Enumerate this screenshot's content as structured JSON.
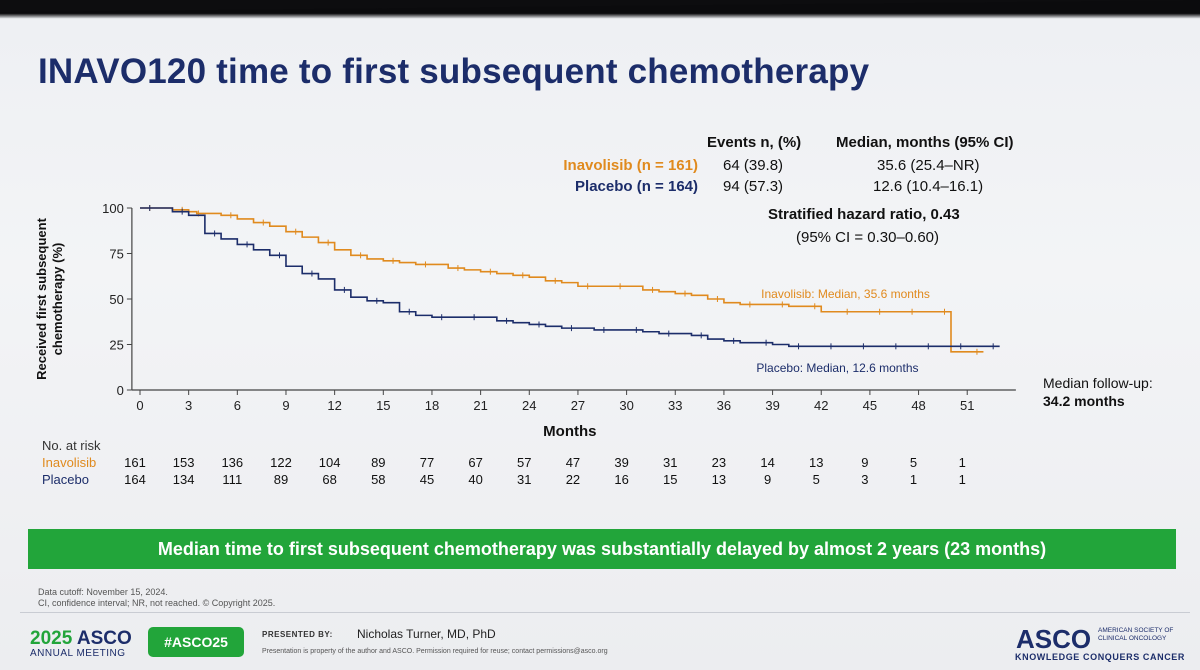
{
  "slide": {
    "title": "INAVO120 time to first subsequent chemotherapy",
    "table": {
      "col_events": "Events n, (%)",
      "col_median": "Median, months (95% CI)",
      "rows": [
        {
          "label": "Inavolisib (n = 161)",
          "events": "64 (39.8)",
          "median": "35.6 (25.4–NR)",
          "color": "#e08a1e"
        },
        {
          "label": "Placebo (n = 164)",
          "events": "94 (57.3)",
          "median": "12.6 (10.4–16.1)",
          "color": "#1c2d6a"
        }
      ]
    },
    "hazard": {
      "title": "Stratified hazard ratio, 0.43",
      "ci": "(95% CI = 0.30–0.60)"
    },
    "followup": {
      "label": "Median follow-up:",
      "value": "34.2 months"
    },
    "risk": {
      "title": "No. at risk",
      "rows": [
        {
          "name": "Inavolisib",
          "color": "#e08a1e",
          "values": [
            "161",
            "153",
            "136",
            "122",
            "104",
            "89",
            "77",
            "67",
            "57",
            "47",
            "39",
            "31",
            "23",
            "14",
            "13",
            "9",
            "5",
            "1"
          ]
        },
        {
          "name": "Placebo",
          "color": "#1c2d6a",
          "values": [
            "164",
            "134",
            "111",
            "89",
            "68",
            "58",
            "45",
            "40",
            "31",
            "22",
            "16",
            "15",
            "13",
            "9",
            "5",
            "3",
            "1",
            "1"
          ]
        }
      ]
    },
    "banner": "Median time to first subsequent chemotherapy was substantially delayed by almost 2 years (23 months)",
    "footnotes": [
      "Data cutoff: November 15, 2024.",
      "CI, confidence interval; NR, not reached. © Copyright 2025."
    ],
    "footer": {
      "asco_year": "2025",
      "asco_word": "ASCO",
      "meeting": "ANNUAL MEETING",
      "hashtag": "#ASCO25",
      "presented_by": "PRESENTED BY:",
      "presenter": "Nicholas Turner, MD, PhD",
      "property_note": "Presentation is property of the author and ASCO. Permission required for reuse; contact permissions@asco.org",
      "asco_logo": "ASCO",
      "society": "AMERICAN SOCIETY OF CLINICAL ONCOLOGY",
      "tagline": "KNOWLEDGE CONQUERS CANCER"
    }
  },
  "chart_data": {
    "type": "line",
    "step": true,
    "xlabel": "Months",
    "ylabel": "Received first subsequent chemotherapy (%)",
    "xlim": [
      0,
      54
    ],
    "ylim": [
      0,
      100
    ],
    "xticks": [
      0,
      3,
      6,
      9,
      12,
      15,
      18,
      21,
      24,
      27,
      30,
      33,
      36,
      39,
      42,
      45,
      48,
      51
    ],
    "yticks": [
      0,
      25,
      50,
      75,
      100
    ],
    "grid": false,
    "series": [
      {
        "name": "Inavolisib",
        "color": "#e08a1e",
        "annotation": "Inavolisib: Median, 35.6 months",
        "x": [
          0,
          1,
          2,
          3,
          3.5,
          4,
          5,
          6,
          7,
          8,
          9,
          10,
          11,
          12,
          13,
          14,
          15,
          16,
          17,
          18,
          19,
          20,
          21,
          22,
          23,
          24,
          25,
          26,
          27,
          28,
          29,
          30,
          31,
          32,
          33,
          34,
          35,
          36,
          37,
          38,
          39,
          40,
          41,
          42,
          43,
          44,
          45,
          46,
          47,
          48,
          49,
          50,
          51,
          52
        ],
        "y": [
          100,
          100,
          99,
          98,
          97,
          97,
          96,
          94,
          92,
          90,
          87,
          84,
          81,
          77,
          74,
          72,
          71,
          70,
          69,
          69,
          67,
          66,
          65,
          64,
          63,
          62,
          60,
          59,
          57,
          57,
          57,
          57,
          55,
          54,
          53,
          52,
          50,
          48,
          47,
          47,
          47,
          46,
          46,
          43,
          43,
          43,
          43,
          43,
          43,
          43,
          43,
          21,
          21,
          21
        ]
      },
      {
        "name": "Placebo",
        "color": "#1c2d6a",
        "annotation": "Placebo: Median, 12.6 months",
        "x": [
          0,
          1,
          2,
          3,
          4,
          5,
          6,
          7,
          8,
          9,
          10,
          11,
          12,
          13,
          14,
          15,
          16,
          17,
          18,
          19,
          20,
          21,
          22,
          23,
          24,
          25,
          26,
          27,
          28,
          29,
          30,
          31,
          32,
          33,
          34,
          35,
          36,
          37,
          38,
          39,
          40,
          41,
          42,
          43,
          44,
          45,
          46,
          47,
          48,
          49,
          50,
          51,
          52,
          53
        ],
        "y": [
          100,
          100,
          98,
          96,
          86,
          83,
          80,
          77,
          74,
          68,
          64,
          61,
          55,
          51,
          49,
          48,
          43,
          41,
          40,
          40,
          40,
          40,
          38,
          37,
          36,
          35,
          34,
          34,
          33,
          33,
          33,
          32,
          31,
          31,
          30,
          28,
          27,
          26,
          26,
          25,
          24,
          24,
          24,
          24,
          24,
          24,
          24,
          24,
          24,
          24,
          24,
          24,
          24,
          24
        ]
      }
    ]
  }
}
